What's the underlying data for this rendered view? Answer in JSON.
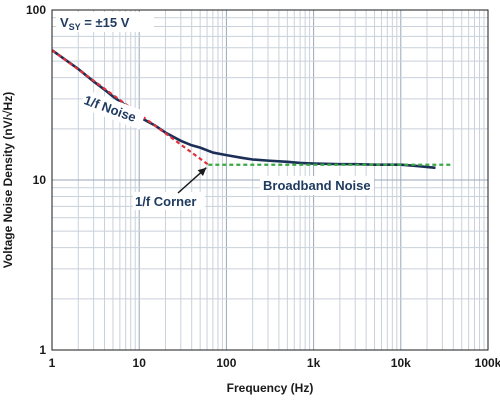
{
  "chart_data": {
    "type": "line",
    "xlabel": "Frequency (Hz)",
    "ylabel": "Voltage Noise Density (nV/√Hz)",
    "x_scale": "log",
    "y_scale": "log",
    "xlim": [
      1,
      100000
    ],
    "ylim": [
      1,
      100
    ],
    "grid": true,
    "x_tick_labels": [
      "1",
      "10",
      "100",
      "1k",
      "10k",
      "100k"
    ],
    "y_tick_labels": [
      "1",
      "10",
      "100"
    ],
    "series": [
      {
        "kind": "measured",
        "color": "#1b2f57",
        "x": [
          1,
          1.5,
          2,
          3,
          4,
          5,
          6,
          7,
          8,
          10,
          15,
          20,
          30,
          40,
          50,
          70,
          100,
          150,
          200,
          300,
          500,
          700,
          1000,
          2000,
          3000,
          5000,
          7000,
          10000,
          15000,
          25000
        ],
        "y": [
          58,
          50,
          45,
          38,
          34,
          31,
          29,
          27.5,
          26,
          23.5,
          21,
          19,
          17,
          16,
          15.5,
          14.5,
          14,
          13.5,
          13.2,
          13,
          12.8,
          12.6,
          12.5,
          12.4,
          12.4,
          12.3,
          12.3,
          12.3,
          12.1,
          11.8
        ]
      },
      {
        "name": "1/f Noise",
        "kind": "fit",
        "color": "#e0303a",
        "dash": "4,3",
        "x": [
          1,
          62
        ],
        "y": [
          58,
          12.3
        ]
      },
      {
        "name": "Broadband Noise",
        "kind": "fit",
        "color": "#3aa845",
        "dash": "4,3",
        "x": [
          62,
          40000
        ],
        "y": [
          12.3,
          12.3
        ]
      }
    ],
    "annotations": [
      {
        "text": "V",
        "sub": "SY",
        "rest": " = ±15 V"
      },
      {
        "text": "1/f Noise"
      },
      {
        "text": "1/f Corner",
        "arrow_to": [
          62,
          12.3
        ]
      },
      {
        "text": "Broadband Noise"
      }
    ]
  }
}
